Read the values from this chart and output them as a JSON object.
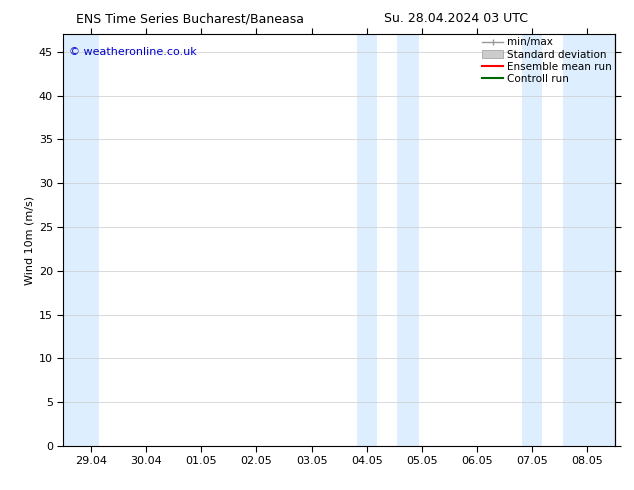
{
  "title_left": "ENS Time Series Bucharest/Baneasa",
  "title_right": "Su. 28.04.2024 03 UTC",
  "ylabel": "Wind 10m (m/s)",
  "watermark": "© weatheronline.co.uk",
  "ylim": [
    0,
    47
  ],
  "yticks": [
    0,
    5,
    10,
    15,
    20,
    25,
    30,
    35,
    40,
    45
  ],
  "xtick_labels": [
    "29.04",
    "30.04",
    "01.05",
    "02.05",
    "03.05",
    "04.05",
    "05.05",
    "06.05",
    "07.05",
    "08.05"
  ],
  "bg_color": "#ffffff",
  "plot_bg_color": "#ffffff",
  "shaded_color": "#ddeeff",
  "shaded_regions": [
    [
      -0.5,
      0.15
    ],
    [
      4.82,
      5.18
    ],
    [
      5.55,
      5.95
    ],
    [
      7.82,
      8.18
    ],
    [
      8.55,
      9.5
    ]
  ],
  "legend_labels": [
    "min/max",
    "Standard deviation",
    "Ensemble mean run",
    "Controll run"
  ],
  "legend_colors": [
    "#999999",
    "#cccccc",
    "#ff0000",
    "#006600"
  ],
  "font_size_title": 9,
  "font_size_axis": 8,
  "font_size_legend": 7.5,
  "font_size_watermark": 8,
  "watermark_color": "#0000cc",
  "tick_color": "#000000",
  "grid_color": "#cccccc",
  "xlim": [
    -0.5,
    9.5
  ]
}
